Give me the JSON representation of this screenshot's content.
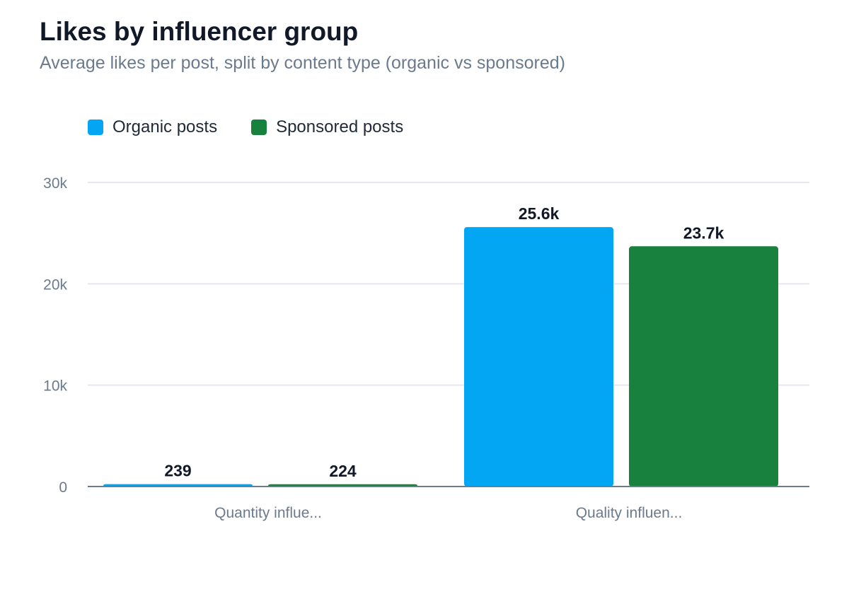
{
  "title": "Likes by influencer group",
  "subtitle": "Average likes per post, split by content type (organic vs sponsored)",
  "colors": {
    "organic": "#03a6f3",
    "sponsored": "#18813d",
    "grid": "#e5e8ee",
    "axis": "#6b7a8d",
    "tick_text": "#6b7a8d",
    "label_text": "#111827"
  },
  "chart_data": {
    "type": "bar",
    "categories": [
      "Quantity influe...",
      "Quality influen..."
    ],
    "series": [
      {
        "name": "Organic posts",
        "values": [
          239,
          25600
        ],
        "labels": [
          "239",
          "25.6k"
        ],
        "color": "#03a6f3"
      },
      {
        "name": "Sponsored posts",
        "values": [
          224,
          23700
        ],
        "labels": [
          "224",
          "23.7k"
        ],
        "color": "#18813d"
      }
    ],
    "ylim": [
      0,
      30000
    ],
    "yticks": [
      0,
      10000,
      20000,
      30000
    ],
    "ytick_labels": [
      "0",
      "10k",
      "20k",
      "30k"
    ],
    "xlabel": "",
    "ylabel": "",
    "grid": true,
    "legend": "top-left"
  }
}
